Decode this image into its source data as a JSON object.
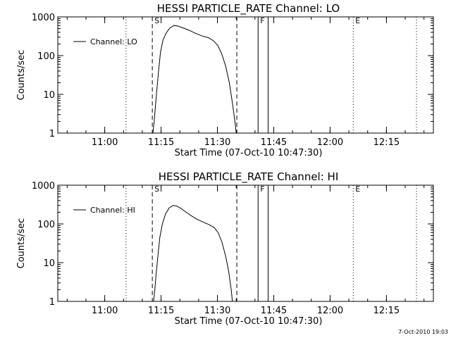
{
  "footer_timestamp": "7-Oct-2010 19:03",
  "chart_data": [
    {
      "type": "line",
      "title": "HESSI PARTICLE_RATE Channel: LO",
      "xlabel": "Start Time (07-Oct-10 10:47:30)",
      "ylabel": "Counts/sec",
      "yscale": "log",
      "ylim": [
        1,
        1000
      ],
      "yticks": [
        "1",
        "10",
        "100",
        "1000"
      ],
      "xlim": [
        "10:47:30",
        "12:27:30"
      ],
      "xticks": [
        "11:00",
        "11:15",
        "11:30",
        "11:45",
        "12:00",
        "12:15"
      ],
      "legend": {
        "label": "Channel: LO",
        "position": "top-left"
      },
      "vertical_markers": [
        {
          "time": "11:05:40",
          "style": "dotted",
          "label": ""
        },
        {
          "time": "11:12:40",
          "style": "dashed",
          "label": "S"
        },
        {
          "time": "11:35:10",
          "style": "dashed",
          "label": ""
        },
        {
          "time": "11:40:50",
          "style": "solid",
          "label": "F"
        },
        {
          "time": "11:43:30",
          "style": "solid",
          "label": ""
        },
        {
          "time": "12:06:10",
          "style": "dotted",
          "label": "E"
        },
        {
          "time": "12:23:00",
          "style": "dotted",
          "label": ""
        }
      ],
      "series": [
        {
          "name": "Channel: LO",
          "points": [
            [
              "11:12:50",
              1
            ],
            [
              "11:13:10",
              2
            ],
            [
              "11:13:30",
              5
            ],
            [
              "11:13:50",
              12
            ],
            [
              "11:14:20",
              40
            ],
            [
              "11:14:50",
              120
            ],
            [
              "11:15:30",
              250
            ],
            [
              "11:16:20",
              380
            ],
            [
              "11:17:20",
              520
            ],
            [
              "11:18:30",
              600
            ],
            [
              "11:19:30",
              580
            ],
            [
              "11:20:50",
              520
            ],
            [
              "11:22:30",
              450
            ],
            [
              "11:24:20",
              370
            ],
            [
              "11:26:00",
              320
            ],
            [
              "11:27:40",
              290
            ],
            [
              "11:29:00",
              240
            ],
            [
              "11:30:10",
              180
            ],
            [
              "11:31:10",
              110
            ],
            [
              "11:32:10",
              55
            ],
            [
              "11:33:10",
              20
            ],
            [
              "11:34:00",
              6
            ],
            [
              "11:34:40",
              2
            ],
            [
              "11:35:00",
              1
            ]
          ]
        }
      ]
    },
    {
      "type": "line",
      "title": "HESSI PARTICLE_RATE Channel: HI",
      "xlabel": "Start Time (07-Oct-10 10:47:30)",
      "ylabel": "Counts/sec",
      "yscale": "log",
      "ylim": [
        1,
        1000
      ],
      "yticks": [
        "1",
        "10",
        "100",
        "1000"
      ],
      "xlim": [
        "10:47:30",
        "12:27:30"
      ],
      "xticks": [
        "11:00",
        "11:15",
        "11:30",
        "11:45",
        "12:00",
        "12:15"
      ],
      "legend": {
        "label": "Channel: HI",
        "position": "top-left"
      },
      "vertical_markers": [
        {
          "time": "11:05:40",
          "style": "dotted",
          "label": ""
        },
        {
          "time": "11:12:40",
          "style": "dashed",
          "label": "S"
        },
        {
          "time": "11:35:10",
          "style": "dashed",
          "label": ""
        },
        {
          "time": "11:40:50",
          "style": "solid",
          "label": "F"
        },
        {
          "time": "11:43:30",
          "style": "solid",
          "label": ""
        },
        {
          "time": "12:06:10",
          "style": "dotted",
          "label": "E"
        },
        {
          "time": "12:23:00",
          "style": "dotted",
          "label": ""
        }
      ],
      "series": [
        {
          "name": "Channel: HI",
          "points": [
            [
              "11:13:00",
              1
            ],
            [
              "11:13:20",
              2
            ],
            [
              "11:13:40",
              5
            ],
            [
              "11:14:10",
              15
            ],
            [
              "11:14:40",
              45
            ],
            [
              "11:15:20",
              100
            ],
            [
              "11:16:10",
              180
            ],
            [
              "11:17:10",
              260
            ],
            [
              "11:18:10",
              300
            ],
            [
              "11:19:10",
              290
            ],
            [
              "11:20:20",
              250
            ],
            [
              "11:21:40",
              200
            ],
            [
              "11:23:10",
              160
            ],
            [
              "11:24:40",
              130
            ],
            [
              "11:26:20",
              110
            ],
            [
              "11:27:50",
              95
            ],
            [
              "11:29:10",
              80
            ],
            [
              "11:30:10",
              60
            ],
            [
              "11:31:10",
              35
            ],
            [
              "11:32:10",
              15
            ],
            [
              "11:33:00",
              6
            ],
            [
              "11:33:40",
              2
            ],
            [
              "11:34:00",
              1
            ]
          ]
        }
      ]
    }
  ]
}
